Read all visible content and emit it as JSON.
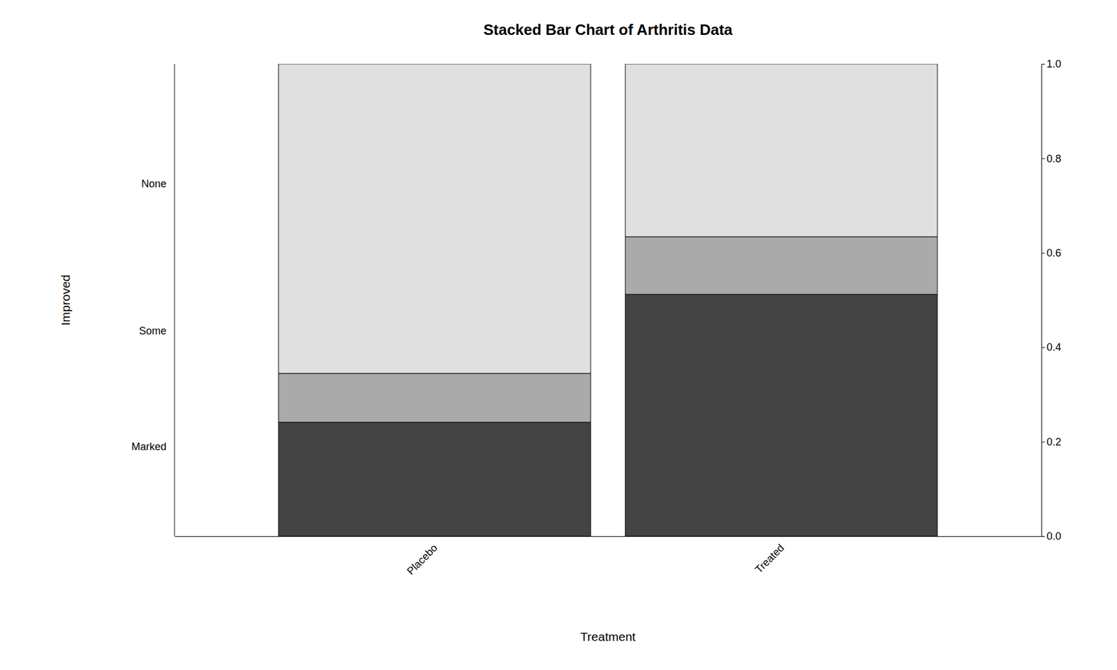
{
  "chart_data": {
    "type": "bar",
    "title": "Stacked Bar Chart of Arthritis Data",
    "xlabel": "Treatment",
    "ylabel": "Improved",
    "categories": [
      "Placebo",
      "Treated"
    ],
    "series": [
      {
        "name": "Marked",
        "color": "#444444",
        "values": [
          0.2413793,
          0.5121951
        ]
      },
      {
        "name": "Some",
        "color": "#aaaaaa",
        "values": [
          0.1034483,
          0.1219512
        ]
      },
      {
        "name": "None",
        "color": "#e0e0e0",
        "values": [
          0.6551724,
          0.3658537
        ]
      }
    ],
    "stacked": true,
    "grid": false,
    "ylim": [
      0,
      1
    ],
    "yticks": [
      {
        "value": 0,
        "label": "0.0"
      },
      0.2,
      0.4,
      0.6,
      0.8,
      {
        "value": 1,
        "label": "1.0"
      }
    ]
  }
}
